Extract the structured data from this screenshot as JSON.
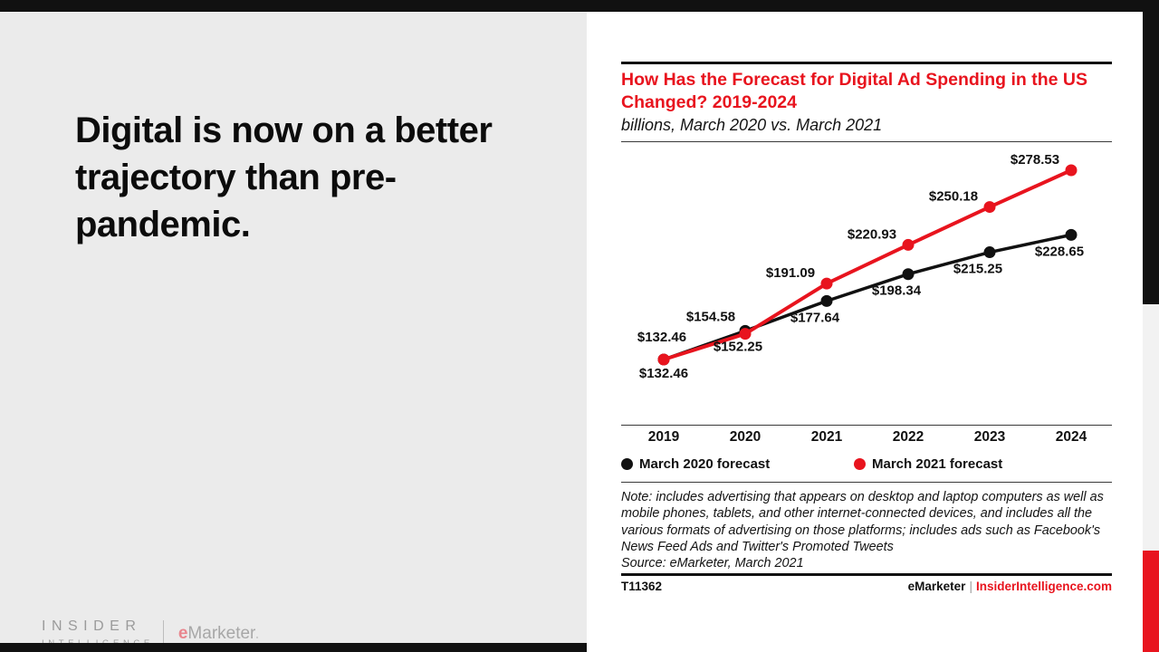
{
  "slide": {
    "headline": "Digital is now on a better trajectory than pre-pandemic.",
    "colors": {
      "accent_red": "#e8141e",
      "panel_gray": "#ebebeb",
      "strip_gray": "#f2f2f2",
      "bar_black": "#111111"
    }
  },
  "brand_footer": {
    "insider_line1": "INSIDER",
    "insider_line2": "INTELLIGENCE",
    "emarketer_e": "e",
    "emarketer_rest": "Marketer",
    "emarketer_dot": "."
  },
  "chart": {
    "title": "How Has the Forecast for Digital Ad Spending in the US Changed? 2019-2024",
    "subtitle": "billions, March 2020 vs. March 2021",
    "note": "Note: includes advertising that appears on desktop and laptop computers as well as mobile phones, tablets, and other internet-connected devices, and includes all the various formats of advertising on those platforms; includes ads such as Facebook's News Feed Ads and Twitter's Promoted Tweets",
    "source": "Source: eMarketer, March 2021",
    "footer_left": "T11362",
    "footer_brand": "eMarketer",
    "footer_divider": "|",
    "footer_site": "InsiderIntelligence.com"
  },
  "chart_data": {
    "type": "line",
    "title": "How Has the Forecast for Digital Ad Spending in the US Changed? 2019-2024",
    "subtitle": "billions, March 2020 vs. March 2021",
    "unit": "billions USD",
    "categories": [
      "2019",
      "2020",
      "2021",
      "2022",
      "2023",
      "2024"
    ],
    "series": [
      {
        "name": "March 2020 forecast",
        "color": "#111111",
        "values": [
          132.46,
          154.58,
          177.64,
          198.34,
          215.25,
          228.65
        ],
        "labels": [
          "$132.46",
          "$154.58",
          "$177.64",
          "$198.34",
          "$215.25",
          "$228.65"
        ]
      },
      {
        "name": "March 2021 forecast",
        "color": "#e8141e",
        "values": [
          132.46,
          152.25,
          191.09,
          220.93,
          250.18,
          278.53
        ],
        "labels": [
          "$132.46",
          "$152.25",
          "$191.09",
          "$220.93",
          "$250.18",
          "$278.53"
        ]
      }
    ],
    "ylim": [
      130,
      285
    ],
    "grid": false,
    "legend_position": "bottom"
  }
}
